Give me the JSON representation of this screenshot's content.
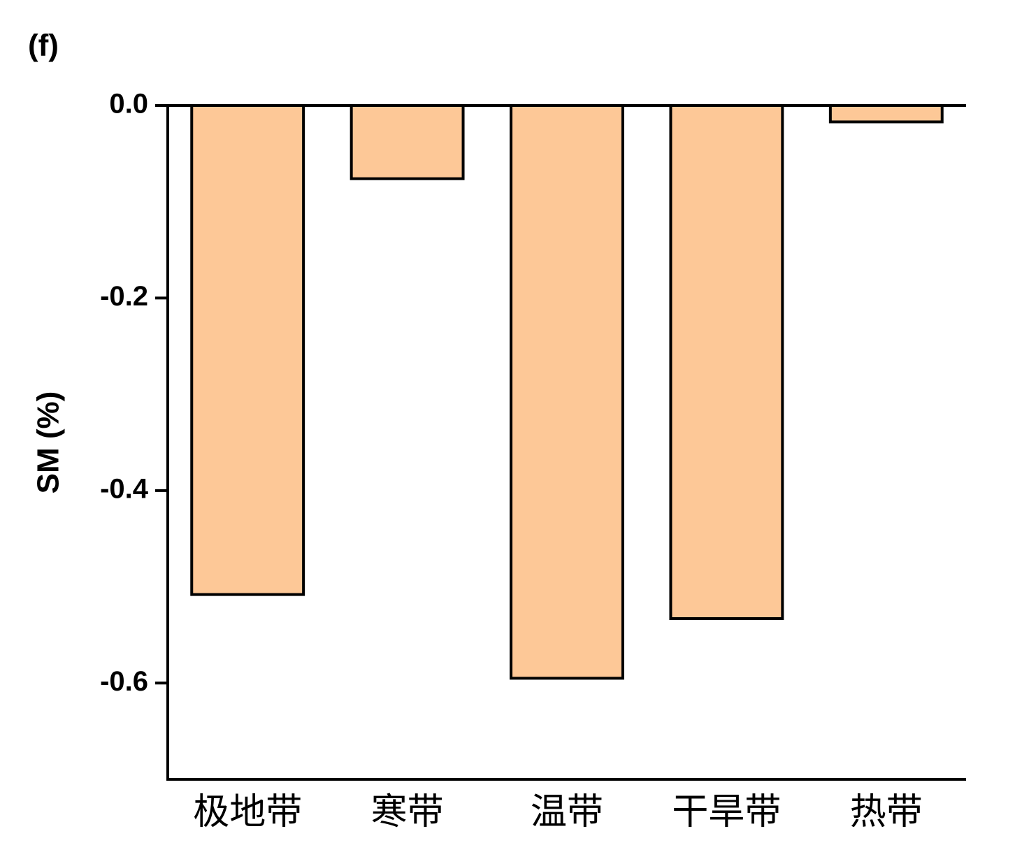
{
  "chart_data": {
    "type": "bar",
    "title": "(f)",
    "y_label": "SM (%)",
    "categories": [
      "极地带",
      "寒带",
      "温带",
      "干旱带",
      "热带"
    ],
    "values": [
      -0.508,
      -0.076,
      -0.595,
      -0.533,
      -0.017
    ],
    "color": "#fdc897",
    "edge_color": "#000000",
    "ylim": [
      -0.7,
      0
    ],
    "yticks": [
      {
        "value": 0,
        "label": "0.0"
      },
      -0.2,
      -0.4,
      -0.6
    ],
    "grid": false
  }
}
